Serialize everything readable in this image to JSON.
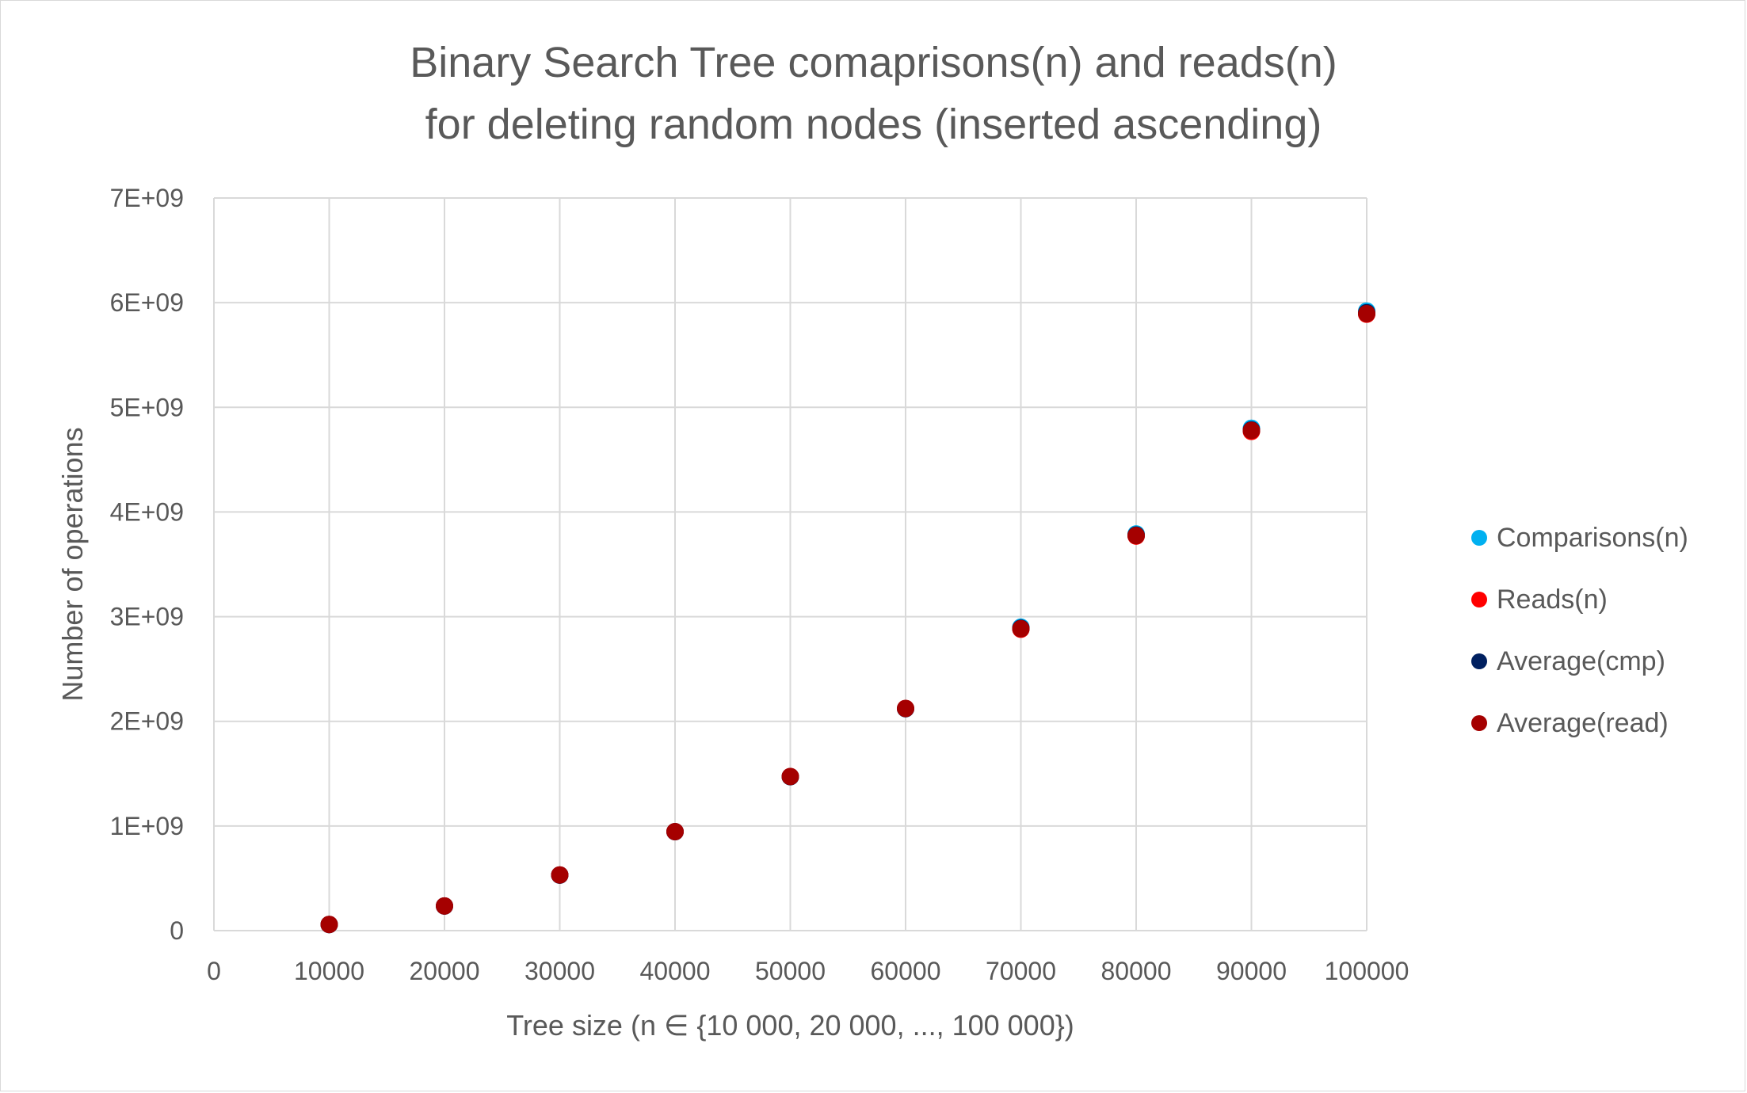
{
  "chart_data": {
    "type": "scatter",
    "title_lines": [
      "Binary Search Tree comaprisons(n) and reads(n)",
      "for deleting random nodes (inserted ascending)"
    ],
    "xlabel": "Tree size (n ∈ {10 000, 20 000, ..., 100 000})",
    "ylabel": "Number of operations",
    "xlim": [
      0,
      100000
    ],
    "ylim": [
      0,
      7000000000
    ],
    "x_ticks": [
      0,
      10000,
      20000,
      30000,
      40000,
      50000,
      60000,
      70000,
      80000,
      90000,
      100000
    ],
    "x_tick_labels": [
      "0",
      "10000",
      "20000",
      "30000",
      "40000",
      "50000",
      "60000",
      "70000",
      "80000",
      "90000",
      "100000"
    ],
    "y_ticks": [
      0,
      1000000000,
      2000000000,
      3000000000,
      4000000000,
      5000000000,
      6000000000,
      7000000000
    ],
    "y_tick_labels": [
      "0",
      "1E+09",
      "2E+09",
      "3E+09",
      "4E+09",
      "5E+09",
      "6E+09",
      "7E+09"
    ],
    "grid": true,
    "legend_position": "right",
    "series": [
      {
        "name": "Comparisons(n)",
        "color": "#00b0f0",
        "x": [
          10000,
          20000,
          30000,
          40000,
          50000,
          60000,
          70000,
          80000,
          90000,
          100000
        ],
        "y": [
          58000000,
          235000000,
          530000000,
          945000000,
          1470000000,
          2120000000,
          2900000000,
          3790000000,
          4800000000,
          5920000000
        ]
      },
      {
        "name": "Reads(n)",
        "color": "#ff0000",
        "x": [
          10000,
          20000,
          30000,
          40000,
          50000,
          60000,
          70000,
          80000,
          90000,
          100000
        ],
        "y": [
          59000000,
          236000000,
          532000000,
          946000000,
          1473000000,
          2123000000,
          2880000000,
          3770000000,
          4770000000,
          5890000000
        ]
      },
      {
        "name": "Average(cmp)",
        "color": "#002060",
        "x": [
          10000,
          20000,
          30000,
          40000,
          50000,
          60000,
          70000,
          80000,
          90000,
          100000
        ],
        "y": [
          58500000,
          235500000,
          531000000,
          945500000,
          1471000000,
          2121000000,
          2890000000,
          3780000000,
          4785000000,
          5905000000
        ]
      },
      {
        "name": "Average(read)",
        "color": "#a50000",
        "x": [
          10000,
          20000,
          30000,
          40000,
          50000,
          60000,
          70000,
          80000,
          90000,
          100000
        ],
        "y": [
          59000000,
          236000000,
          531500000,
          946000000,
          1472000000,
          2122000000,
          2885000000,
          3775000000,
          4780000000,
          5895000000
        ]
      }
    ]
  }
}
